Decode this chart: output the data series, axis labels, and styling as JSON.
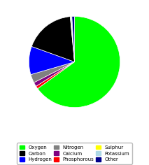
{
  "labels": [
    "Oxygen",
    "Phosphorous",
    "Calcium",
    "Nitrogen",
    "Hydrogen",
    "Carbon",
    "Sulphur",
    "Potassium",
    "Other"
  ],
  "values": [
    65.0,
    1.0,
    1.5,
    3.0,
    10.0,
    18.0,
    0.25,
    0.35,
    0.9
  ],
  "colors": [
    "#00ff00",
    "#ff0000",
    "#800080",
    "#808080",
    "#0000ff",
    "#000000",
    "#ffff00",
    "#add8e6",
    "#00008b"
  ],
  "legend_order": [
    "Oxygen",
    "Carbon",
    "Hydrogen",
    "Nitrogen",
    "Calcium",
    "Phosphorous",
    "Sulphur",
    "Potassium",
    "Other"
  ],
  "legend_colors": [
    "#00ff00",
    "#000000",
    "#0000ff",
    "#808080",
    "#800080",
    "#ff0000",
    "#ffff00",
    "#add8e6",
    "#00008b"
  ],
  "background_color": "#ffffff"
}
